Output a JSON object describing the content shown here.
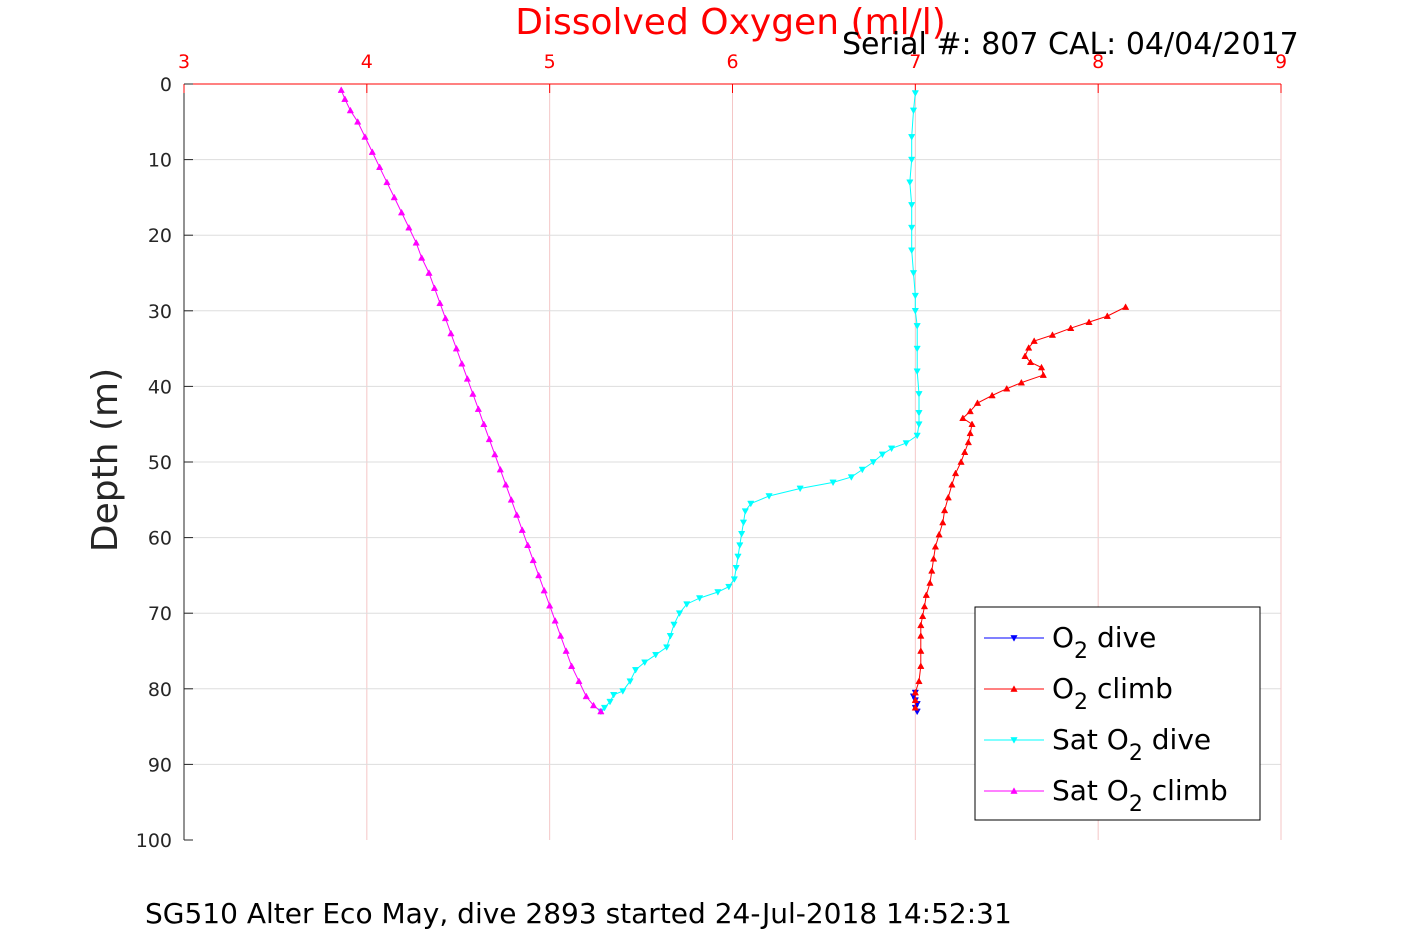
{
  "footer": "SG510 Alter Eco May, dive 2893 started 24-Jul-2018 14:52:31",
  "serial_label": "Serial #: 807  CAL: 04/04/2017",
  "chart_data": {
    "type": "line",
    "title": "Dissolved Oxygen (ml/l)",
    "ylabel": "Depth (m)",
    "xlabel": "",
    "x_axis_position": "top",
    "y_reversed": true,
    "xlim": [
      3,
      9
    ],
    "ylim": [
      0,
      100
    ],
    "x_ticks": [
      3,
      4,
      5,
      6,
      7,
      8,
      9
    ],
    "y_ticks": [
      0,
      10,
      20,
      30,
      40,
      50,
      60,
      70,
      80,
      90,
      100
    ],
    "grid": true,
    "legend_position": "bottom-right",
    "colors": {
      "title": "#ff0000",
      "x_ticks": "#ff0000",
      "grid_x": "#f4c6c6",
      "grid_y": "#dddddd"
    },
    "series": [
      {
        "legend_parts": [
          "O",
          "2",
          " dive"
        ],
        "color": "#0000ff",
        "marker": "triangle-down",
        "points": [
          [
            7.0,
            80.5
          ],
          [
            6.99,
            81.0
          ],
          [
            7.0,
            81.5
          ],
          [
            7.01,
            82.0
          ],
          [
            7.0,
            82.5
          ],
          [
            7.01,
            83.0
          ]
        ]
      },
      {
        "legend_parts": [
          "O",
          "2",
          " climb"
        ],
        "color": "#ff0000",
        "marker": "triangle-up",
        "points": [
          [
            8.15,
            29.5
          ],
          [
            8.05,
            30.7
          ],
          [
            7.95,
            31.5
          ],
          [
            7.85,
            32.3
          ],
          [
            7.75,
            33.2
          ],
          [
            7.65,
            34.0
          ],
          [
            7.62,
            34.9
          ],
          [
            7.6,
            36.0
          ],
          [
            7.63,
            36.8
          ],
          [
            7.69,
            37.5
          ],
          [
            7.7,
            38.5
          ],
          [
            7.58,
            39.5
          ],
          [
            7.5,
            40.3
          ],
          [
            7.42,
            41.2
          ],
          [
            7.34,
            42.2
          ],
          [
            7.3,
            43.3
          ],
          [
            7.26,
            44.2
          ],
          [
            7.31,
            45.0
          ],
          [
            7.3,
            46.2
          ],
          [
            7.29,
            47.4
          ],
          [
            7.27,
            48.7
          ],
          [
            7.25,
            50.0
          ],
          [
            7.22,
            51.5
          ],
          [
            7.2,
            53.0
          ],
          [
            7.18,
            54.7
          ],
          [
            7.16,
            56.4
          ],
          [
            7.15,
            58.0
          ],
          [
            7.13,
            59.6
          ],
          [
            7.11,
            61.2
          ],
          [
            7.1,
            62.8
          ],
          [
            7.09,
            64.4
          ],
          [
            7.08,
            66.0
          ],
          [
            7.06,
            67.6
          ],
          [
            7.05,
            69.1
          ],
          [
            7.04,
            70.4
          ],
          [
            7.03,
            71.6
          ],
          [
            7.03,
            73.0
          ],
          [
            7.03,
            75.0
          ],
          [
            7.03,
            77.0
          ],
          [
            7.02,
            79.0
          ],
          [
            7.0,
            80.5
          ],
          [
            7.0,
            81.5
          ],
          [
            7.0,
            82.5
          ]
        ]
      },
      {
        "legend_parts": [
          "Sat O",
          "2",
          " dive"
        ],
        "color": "#00ffff",
        "marker": "triangle-down",
        "points": [
          [
            7.0,
            1.2
          ],
          [
            6.99,
            3.5
          ],
          [
            6.98,
            7.0
          ],
          [
            6.98,
            10.0
          ],
          [
            6.97,
            13.0
          ],
          [
            6.98,
            16.0
          ],
          [
            6.98,
            19.0
          ],
          [
            6.98,
            22.0
          ],
          [
            6.99,
            25.0
          ],
          [
            7.0,
            28.0
          ],
          [
            7.0,
            30.0
          ],
          [
            7.01,
            32.0
          ],
          [
            7.01,
            35.0
          ],
          [
            7.01,
            38.0
          ],
          [
            7.02,
            41.0
          ],
          [
            7.02,
            43.5
          ],
          [
            7.02,
            45.0
          ],
          [
            7.01,
            46.5
          ],
          [
            6.95,
            47.5
          ],
          [
            6.87,
            48.2
          ],
          [
            6.82,
            49.0
          ],
          [
            6.77,
            50.0
          ],
          [
            6.71,
            51.0
          ],
          [
            6.65,
            52.0
          ],
          [
            6.55,
            52.7
          ],
          [
            6.37,
            53.5
          ],
          [
            6.2,
            54.5
          ],
          [
            6.1,
            55.5
          ],
          [
            6.07,
            56.5
          ],
          [
            6.06,
            58.0
          ],
          [
            6.05,
            59.5
          ],
          [
            6.04,
            61.0
          ],
          [
            6.03,
            62.5
          ],
          [
            6.02,
            64.0
          ],
          [
            6.01,
            65.5
          ],
          [
            5.98,
            66.5
          ],
          [
            5.92,
            67.2
          ],
          [
            5.82,
            68.0
          ],
          [
            5.75,
            68.8
          ],
          [
            5.71,
            70.0
          ],
          [
            5.68,
            71.5
          ],
          [
            5.66,
            73.0
          ],
          [
            5.64,
            74.5
          ],
          [
            5.58,
            75.5
          ],
          [
            5.52,
            76.5
          ],
          [
            5.47,
            77.5
          ],
          [
            5.44,
            79.0
          ],
          [
            5.4,
            80.3
          ],
          [
            5.35,
            80.8
          ],
          [
            5.33,
            81.7
          ],
          [
            5.3,
            82.5
          ],
          [
            5.28,
            83.0
          ]
        ]
      },
      {
        "legend_parts": [
          "Sat O",
          "2",
          " climb"
        ],
        "color": "#ff00ff",
        "marker": "triangle-up",
        "points": [
          [
            3.86,
            0.8
          ],
          [
            3.88,
            2.0
          ],
          [
            3.91,
            3.5
          ],
          [
            3.95,
            5.0
          ],
          [
            3.99,
            7.0
          ],
          [
            4.03,
            9.0
          ],
          [
            4.07,
            11.0
          ],
          [
            4.11,
            13.0
          ],
          [
            4.15,
            15.0
          ],
          [
            4.19,
            17.0
          ],
          [
            4.23,
            19.0
          ],
          [
            4.27,
            21.0
          ],
          [
            4.3,
            23.0
          ],
          [
            4.34,
            25.0
          ],
          [
            4.37,
            27.0
          ],
          [
            4.4,
            29.0
          ],
          [
            4.43,
            31.0
          ],
          [
            4.46,
            33.0
          ],
          [
            4.49,
            35.0
          ],
          [
            4.52,
            37.0
          ],
          [
            4.55,
            39.0
          ],
          [
            4.58,
            41.0
          ],
          [
            4.61,
            43.0
          ],
          [
            4.64,
            45.0
          ],
          [
            4.67,
            47.0
          ],
          [
            4.7,
            49.0
          ],
          [
            4.73,
            51.0
          ],
          [
            4.76,
            53.0
          ],
          [
            4.79,
            55.0
          ],
          [
            4.82,
            57.0
          ],
          [
            4.85,
            59.0
          ],
          [
            4.88,
            61.0
          ],
          [
            4.91,
            63.0
          ],
          [
            4.94,
            65.0
          ],
          [
            4.97,
            67.0
          ],
          [
            5.0,
            69.0
          ],
          [
            5.03,
            71.0
          ],
          [
            5.06,
            73.0
          ],
          [
            5.09,
            75.0
          ],
          [
            5.12,
            77.0
          ],
          [
            5.16,
            79.0
          ],
          [
            5.2,
            81.0
          ],
          [
            5.24,
            82.2
          ],
          [
            5.28,
            83.0
          ]
        ]
      }
    ]
  }
}
